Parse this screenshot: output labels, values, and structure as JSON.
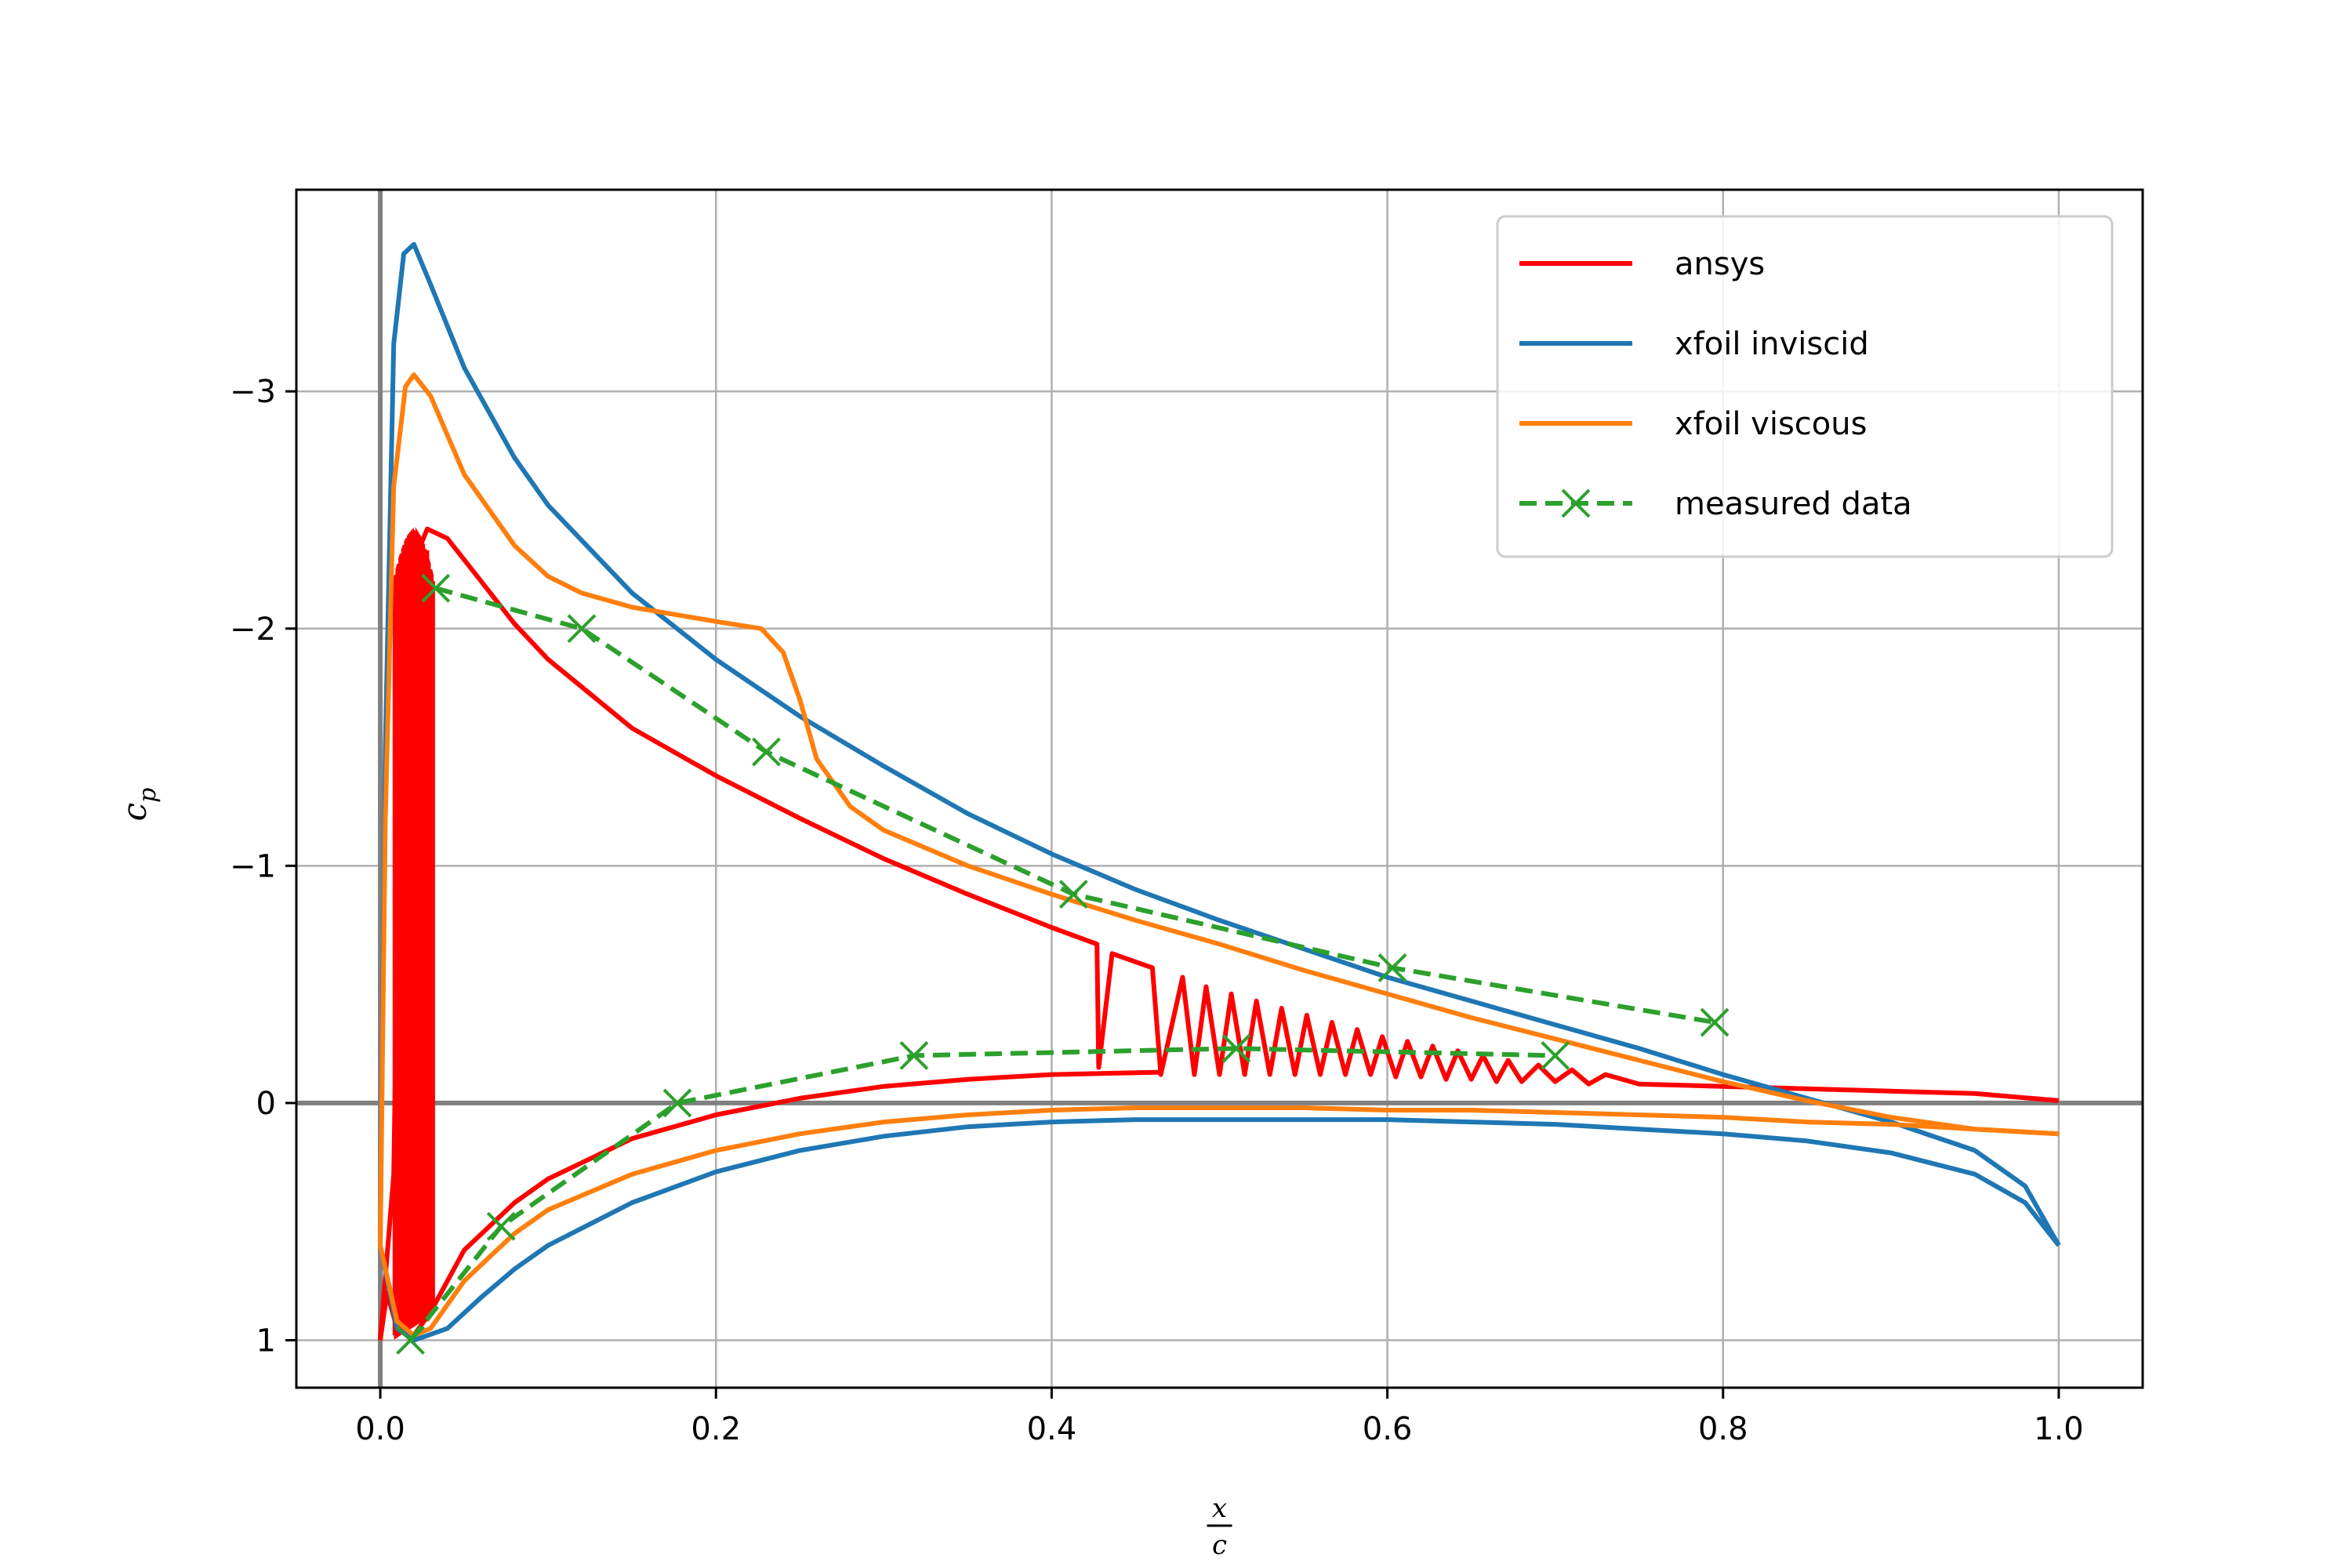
{
  "chart_data": {
    "type": "line",
    "title": "",
    "xlabel": {
      "numerator": "x",
      "denominator": "c"
    },
    "ylabel": {
      "base": "c",
      "subscript": "p"
    },
    "xlim": [
      -0.05,
      1.05
    ],
    "ylim": [
      1.2,
      -3.85
    ],
    "y_inverted": true,
    "grid": true,
    "legend_position": "top-right",
    "x_ticks": [
      0.0,
      0.2,
      0.4,
      0.6,
      0.8,
      1.0
    ],
    "x_tick_labels": [
      "0.0",
      "0.2",
      "0.4",
      "0.6",
      "0.8",
      "1.0"
    ],
    "y_ticks": [
      1,
      0,
      -1,
      -2,
      -3
    ],
    "y_tick_labels": [
      "1",
      "0",
      "−1",
      "−2",
      "−3"
    ],
    "reference_lines": {
      "x": 0,
      "y": 0,
      "color": "#808080"
    },
    "series": [
      {
        "name": "ansys",
        "color": "#ff0000",
        "style": "solid",
        "upper": [
          [
            0.0,
            1.0
          ],
          [
            0.008,
            0.3
          ],
          [
            0.012,
            -1.5
          ],
          [
            0.018,
            -2.25
          ],
          [
            0.028,
            -2.42
          ],
          [
            0.04,
            -2.38
          ],
          [
            0.06,
            -2.2
          ],
          [
            0.08,
            -2.02
          ],
          [
            0.1,
            -1.87
          ],
          [
            0.15,
            -1.58
          ],
          [
            0.2,
            -1.38
          ],
          [
            0.25,
            -1.2
          ],
          [
            0.3,
            -1.03
          ],
          [
            0.35,
            -0.88
          ],
          [
            0.4,
            -0.74
          ],
          [
            0.427,
            -0.67
          ],
          [
            0.428,
            -0.15
          ],
          [
            0.436,
            -0.63
          ],
          [
            0.46,
            -0.57
          ],
          [
            0.465,
            -0.12
          ],
          [
            0.478,
            -0.53
          ],
          [
            0.485,
            -0.12
          ],
          [
            0.492,
            -0.49
          ],
          [
            0.5,
            -0.12
          ],
          [
            0.507,
            -0.46
          ],
          [
            0.515,
            -0.12
          ],
          [
            0.522,
            -0.43
          ],
          [
            0.53,
            -0.12
          ],
          [
            0.537,
            -0.4
          ],
          [
            0.545,
            -0.12
          ],
          [
            0.552,
            -0.37
          ],
          [
            0.56,
            -0.12
          ],
          [
            0.567,
            -0.34
          ],
          [
            0.575,
            -0.12
          ],
          [
            0.582,
            -0.31
          ],
          [
            0.59,
            -0.12
          ],
          [
            0.597,
            -0.28
          ],
          [
            0.605,
            -0.11
          ],
          [
            0.612,
            -0.26
          ],
          [
            0.62,
            -0.11
          ],
          [
            0.627,
            -0.24
          ],
          [
            0.635,
            -0.1
          ],
          [
            0.642,
            -0.22
          ],
          [
            0.65,
            -0.1
          ],
          [
            0.657,
            -0.2
          ],
          [
            0.665,
            -0.09
          ],
          [
            0.672,
            -0.18
          ],
          [
            0.68,
            -0.09
          ],
          [
            0.69,
            -0.16
          ],
          [
            0.7,
            -0.09
          ],
          [
            0.71,
            -0.14
          ],
          [
            0.72,
            -0.08
          ],
          [
            0.73,
            -0.12
          ],
          [
            0.75,
            -0.08
          ],
          [
            0.8,
            -0.07
          ],
          [
            0.85,
            -0.06
          ],
          [
            0.9,
            -0.05
          ],
          [
            0.95,
            -0.04
          ],
          [
            1.0,
            -0.01
          ]
        ],
        "lower": [
          [
            0.0,
            1.0
          ],
          [
            0.004,
            0.8
          ],
          [
            0.01,
            0.95
          ],
          [
            0.02,
            0.98
          ],
          [
            0.03,
            0.88
          ],
          [
            0.05,
            0.62
          ],
          [
            0.08,
            0.42
          ],
          [
            0.1,
            0.32
          ],
          [
            0.15,
            0.15
          ],
          [
            0.2,
            0.05
          ],
          [
            0.25,
            -0.02
          ],
          [
            0.3,
            -0.07
          ],
          [
            0.35,
            -0.1
          ],
          [
            0.4,
            -0.12
          ],
          [
            0.465,
            -0.13
          ]
        ],
        "dense_band_x": [
          0.009,
          0.031
        ]
      },
      {
        "name": "xfoil inviscid",
        "color": "#1f77b4",
        "style": "solid",
        "upper": [
          [
            0.0,
            0.6
          ],
          [
            0.003,
            -1.5
          ],
          [
            0.008,
            -3.2
          ],
          [
            0.014,
            -3.58
          ],
          [
            0.02,
            -3.62
          ],
          [
            0.03,
            -3.45
          ],
          [
            0.05,
            -3.1
          ],
          [
            0.08,
            -2.72
          ],
          [
            0.1,
            -2.52
          ],
          [
            0.15,
            -2.15
          ],
          [
            0.2,
            -1.87
          ],
          [
            0.25,
            -1.63
          ],
          [
            0.3,
            -1.42
          ],
          [
            0.35,
            -1.22
          ],
          [
            0.4,
            -1.05
          ],
          [
            0.45,
            -0.9
          ],
          [
            0.5,
            -0.77
          ],
          [
            0.55,
            -0.65
          ],
          [
            0.6,
            -0.53
          ],
          [
            0.65,
            -0.43
          ],
          [
            0.7,
            -0.33
          ],
          [
            0.75,
            -0.23
          ],
          [
            0.8,
            -0.12
          ],
          [
            0.85,
            -0.02
          ],
          [
            0.9,
            0.08
          ],
          [
            0.95,
            0.2
          ],
          [
            0.98,
            0.35
          ],
          [
            1.0,
            0.6
          ]
        ],
        "lower": [
          [
            0.0,
            0.6
          ],
          [
            0.01,
            0.95
          ],
          [
            0.02,
            1.0
          ],
          [
            0.04,
            0.95
          ],
          [
            0.06,
            0.82
          ],
          [
            0.08,
            0.7
          ],
          [
            0.1,
            0.6
          ],
          [
            0.15,
            0.42
          ],
          [
            0.2,
            0.29
          ],
          [
            0.25,
            0.2
          ],
          [
            0.3,
            0.14
          ],
          [
            0.35,
            0.1
          ],
          [
            0.4,
            0.08
          ],
          [
            0.45,
            0.07
          ],
          [
            0.5,
            0.07
          ],
          [
            0.55,
            0.07
          ],
          [
            0.6,
            0.07
          ],
          [
            0.65,
            0.08
          ],
          [
            0.7,
            0.09
          ],
          [
            0.75,
            0.11
          ],
          [
            0.8,
            0.13
          ],
          [
            0.85,
            0.16
          ],
          [
            0.9,
            0.21
          ],
          [
            0.95,
            0.3
          ],
          [
            0.98,
            0.42
          ],
          [
            1.0,
            0.6
          ]
        ]
      },
      {
        "name": "xfoil viscous",
        "color": "#ff7f0e",
        "style": "solid",
        "upper": [
          [
            0.0,
            0.6
          ],
          [
            0.003,
            -1.2
          ],
          [
            0.008,
            -2.6
          ],
          [
            0.015,
            -3.02
          ],
          [
            0.02,
            -3.07
          ],
          [
            0.03,
            -2.98
          ],
          [
            0.05,
            -2.65
          ],
          [
            0.08,
            -2.35
          ],
          [
            0.1,
            -2.22
          ],
          [
            0.12,
            -2.15
          ],
          [
            0.15,
            -2.09
          ],
          [
            0.2,
            -2.03
          ],
          [
            0.227,
            -2.0
          ],
          [
            0.24,
            -1.9
          ],
          [
            0.25,
            -1.7
          ],
          [
            0.26,
            -1.45
          ],
          [
            0.28,
            -1.25
          ],
          [
            0.3,
            -1.15
          ],
          [
            0.35,
            -1.0
          ],
          [
            0.4,
            -0.88
          ],
          [
            0.45,
            -0.77
          ],
          [
            0.5,
            -0.67
          ],
          [
            0.55,
            -0.56
          ],
          [
            0.6,
            -0.46
          ],
          [
            0.65,
            -0.36
          ],
          [
            0.7,
            -0.27
          ],
          [
            0.75,
            -0.18
          ],
          [
            0.8,
            -0.09
          ],
          [
            0.85,
            -0.01
          ],
          [
            0.9,
            0.06
          ],
          [
            0.95,
            0.11
          ],
          [
            1.0,
            0.13
          ]
        ],
        "lower": [
          [
            0.0,
            0.6
          ],
          [
            0.01,
            0.92
          ],
          [
            0.02,
            0.98
          ],
          [
            0.03,
            0.95
          ],
          [
            0.05,
            0.75
          ],
          [
            0.08,
            0.55
          ],
          [
            0.1,
            0.45
          ],
          [
            0.15,
            0.3
          ],
          [
            0.2,
            0.2
          ],
          [
            0.25,
            0.13
          ],
          [
            0.3,
            0.08
          ],
          [
            0.35,
            0.05
          ],
          [
            0.4,
            0.03
          ],
          [
            0.45,
            0.02
          ],
          [
            0.5,
            0.02
          ],
          [
            0.55,
            0.02
          ],
          [
            0.6,
            0.03
          ],
          [
            0.65,
            0.03
          ],
          [
            0.7,
            0.04
          ],
          [
            0.75,
            0.05
          ],
          [
            0.8,
            0.06
          ],
          [
            0.85,
            0.08
          ],
          [
            0.9,
            0.09
          ],
          [
            0.95,
            0.11
          ],
          [
            1.0,
            0.13
          ]
        ]
      },
      {
        "name": "measured data",
        "color": "#2ca02c",
        "style": "dashed",
        "marker": "x",
        "upper": [
          [
            0.033,
            -2.17
          ],
          [
            0.12,
            -2.0
          ],
          [
            0.23,
            -1.48
          ],
          [
            0.413,
            -0.88
          ],
          [
            0.603,
            -0.57
          ],
          [
            0.795,
            -0.34
          ]
        ],
        "lower": [
          [
            0.018,
            1.0
          ],
          [
            0.072,
            0.52
          ],
          [
            0.177,
            0.0
          ],
          [
            0.318,
            -0.2
          ],
          [
            0.51,
            -0.23
          ],
          [
            0.7,
            -0.2
          ]
        ]
      }
    ]
  }
}
